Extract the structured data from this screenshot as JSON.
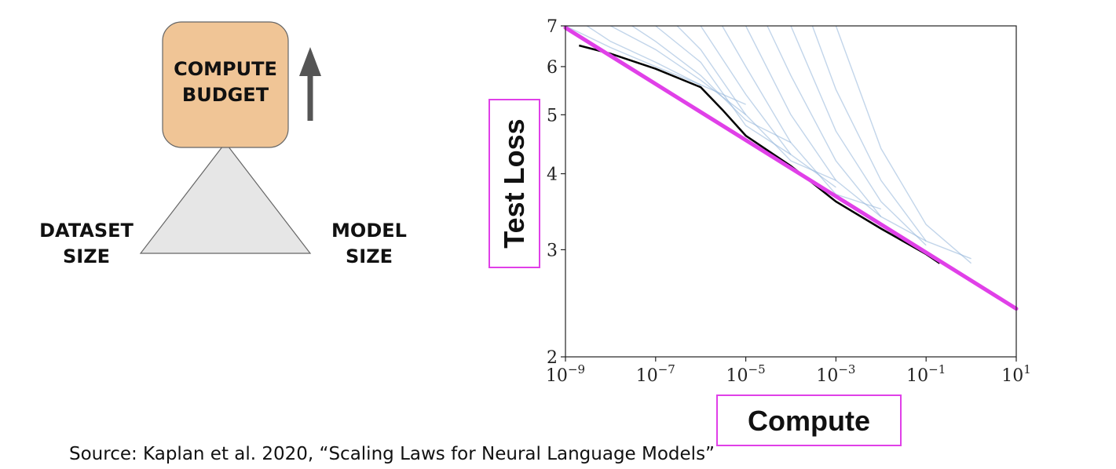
{
  "diagram": {
    "top_label": "COMPUTE\nBUDGET",
    "left_label": "DATASET\nSIZE",
    "right_label": "MODEL\nSIZE",
    "box_color": "#f0c596",
    "triangle_color": "#e6e6e6",
    "arrow_icon": "up-arrow-icon"
  },
  "chart_data": {
    "type": "line",
    "xlabel": "Compute",
    "ylabel": "Test Loss",
    "xscale": "log",
    "yscale": "log",
    "xlim": [
      1e-09,
      10
    ],
    "ylim": [
      2,
      7
    ],
    "x_ticks": [
      {
        "value": 1e-09,
        "base": "10",
        "exp": "−9"
      },
      {
        "value": 1e-07,
        "base": "10",
        "exp": "−7"
      },
      {
        "value": 1e-05,
        "base": "10",
        "exp": "−5"
      },
      {
        "value": 0.001,
        "base": "10",
        "exp": "−3"
      },
      {
        "value": 0.1,
        "base": "10",
        "exp": "−1"
      },
      {
        "value": 10,
        "base": "10",
        "exp": "1"
      }
    ],
    "y_ticks": [
      {
        "value": 2,
        "label": "2"
      },
      {
        "value": 3,
        "label": "3"
      },
      {
        "value": 4,
        "label": "4"
      },
      {
        "value": 5,
        "label": "5"
      },
      {
        "value": 6,
        "label": "6"
      },
      {
        "value": 7,
        "label": "7"
      }
    ],
    "grid": false,
    "colors": {
      "frontier_fit": "#e040e8",
      "optimal": "#000000",
      "runs": "#8fb3d9",
      "highlight_box": "#e040e8"
    },
    "fit_line": {
      "x": [
        1e-09,
        10
      ],
      "y": [
        6.95,
        2.4
      ]
    },
    "optimal_curve": {
      "x": [
        2e-09,
        1e-08,
        1e-07,
        1e-06,
        3e-06,
        1e-05,
        0.0001,
        0.001,
        0.01,
        0.1,
        0.2
      ],
      "y": [
        6.5,
        6.3,
        5.95,
        5.55,
        5.1,
        4.62,
        4.12,
        3.6,
        3.25,
        2.95,
        2.85
      ]
    },
    "training_runs": [
      {
        "x": [
          1e-09,
          1e-08,
          1e-07,
          1e-06
        ],
        "y": [
          7.0,
          6.45,
          6.0,
          5.6
        ]
      },
      {
        "x": [
          3e-09,
          1e-08,
          1e-07,
          1e-06,
          1e-05
        ],
        "y": [
          7.0,
          6.6,
          6.1,
          5.6,
          5.2
        ]
      },
      {
        "x": [
          1e-08,
          1e-07,
          1e-06,
          1e-05
        ],
        "y": [
          7.0,
          6.4,
          5.7,
          5.0
        ]
      },
      {
        "x": [
          3e-08,
          1e-07,
          1e-06,
          1e-05,
          0.0001
        ],
        "y": [
          7.0,
          6.6,
          5.8,
          4.9,
          4.5
        ]
      },
      {
        "x": [
          1e-07,
          1e-06,
          1e-05,
          0.0001
        ],
        "y": [
          7.0,
          6.1,
          4.8,
          4.3
        ]
      },
      {
        "x": [
          3e-07,
          1e-06,
          1e-05,
          0.0001,
          0.001
        ],
        "y": [
          7.0,
          6.4,
          5.0,
          4.2,
          3.9
        ]
      },
      {
        "x": [
          1e-06,
          1e-05,
          0.0001,
          0.001
        ],
        "y": [
          7.0,
          5.4,
          4.3,
          3.8
        ]
      },
      {
        "x": [
          3e-06,
          1e-05,
          0.0001,
          0.001,
          0.01
        ],
        "y": [
          7.0,
          6.0,
          4.5,
          3.7,
          3.5
        ]
      },
      {
        "x": [
          1e-05,
          0.0001,
          0.001,
          0.01
        ],
        "y": [
          7.0,
          5.0,
          3.9,
          3.4
        ]
      },
      {
        "x": [
          3e-05,
          0.0001,
          0.001,
          0.01,
          0.1
        ],
        "y": [
          7.0,
          5.8,
          4.2,
          3.4,
          3.1
        ]
      },
      {
        "x": [
          0.0001,
          0.001,
          0.01,
          0.1
        ],
        "y": [
          7.0,
          4.7,
          3.6,
          3.05
        ]
      },
      {
        "x": [
          0.0003,
          0.001,
          0.01,
          0.1,
          1
        ],
        "y": [
          7.0,
          5.5,
          3.9,
          3.1,
          2.9
        ]
      },
      {
        "x": [
          0.001,
          0.01,
          0.1,
          1
        ],
        "y": [
          7.0,
          4.4,
          3.3,
          2.85
        ]
      }
    ]
  },
  "source_text": "Source: Kaplan et al. 2020, “Scaling Laws for Neural Language Models”"
}
